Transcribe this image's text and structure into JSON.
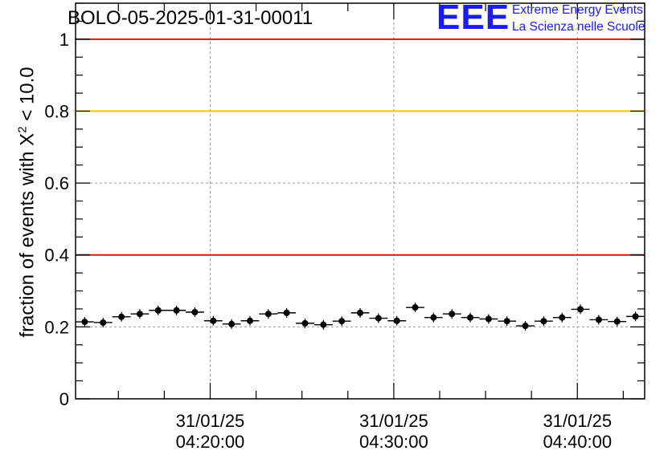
{
  "header": {
    "run_title": "BOLO-05-2025-01-31-00011"
  },
  "logo": {
    "mark": "EEE",
    "line1": "Extreme Energy Events",
    "line2": "La Scienza nelle Scuole",
    "color": "#1a1aff"
  },
  "chart_data": {
    "type": "scatter",
    "title": "BOLO-05-2025-01-31-00011",
    "xlabel": "",
    "ylabel_prefix": "fraction of events with ",
    "ylabel_symbol": "X",
    "ylabel_sup": "2",
    "ylabel_suffix": " < 10.0",
    "ylim": [
      0,
      1.1
    ],
    "x_time_range": [
      "04:12:40",
      "04:43:40"
    ],
    "bin_minutes": 1,
    "grid": true,
    "y_ticks": [
      "0",
      "0.2",
      "0.4",
      "0.6",
      "0.8",
      "1"
    ],
    "y_tick_values": [
      0,
      0.2,
      0.4,
      0.6,
      0.8,
      1.0
    ],
    "x_ticks": [
      {
        "time": "04:20:00",
        "date_label": "31/01/25",
        "time_label": "04:20:00"
      },
      {
        "time": "04:30:00",
        "date_label": "31/01/25",
        "time_label": "04:30:00"
      },
      {
        "time": "04:40:00",
        "date_label": "31/01/25",
        "time_label": "04:40:00"
      }
    ],
    "reference_lines": [
      {
        "y": 1.0,
        "color": "#ee1111"
      },
      {
        "y": 0.8,
        "color": "#ffc000"
      },
      {
        "y": 0.4,
        "color": "#ee1111"
      }
    ],
    "series": [
      {
        "x": [
          "04:13:10",
          "04:14:10",
          "04:15:10",
          "04:16:10",
          "04:17:10",
          "04:18:10",
          "04:19:10",
          "04:20:10",
          "04:21:10",
          "04:22:10",
          "04:23:10",
          "04:24:10",
          "04:25:10",
          "04:26:10",
          "04:27:10",
          "04:28:10",
          "04:29:10",
          "04:30:10",
          "04:31:10",
          "04:32:10",
          "04:33:10",
          "04:34:10",
          "04:35:10",
          "04:36:10",
          "04:37:10",
          "04:38:10",
          "04:39:10",
          "04:40:10",
          "04:41:10",
          "04:42:10",
          "04:43:10"
        ],
        "values": [
          0.214,
          0.212,
          0.228,
          0.236,
          0.246,
          0.246,
          0.241,
          0.217,
          0.208,
          0.217,
          0.236,
          0.239,
          0.21,
          0.206,
          0.216,
          0.239,
          0.224,
          0.217,
          0.254,
          0.226,
          0.236,
          0.226,
          0.222,
          0.216,
          0.203,
          0.216,
          0.226,
          0.249,
          0.22,
          0.215,
          0.229
        ]
      }
    ]
  }
}
